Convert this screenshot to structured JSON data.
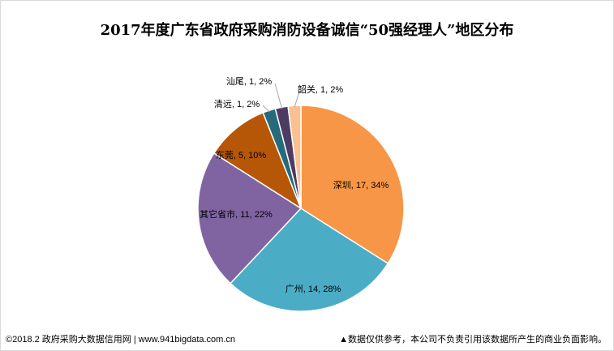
{
  "chart_data": {
    "type": "pie",
    "title": "2017年度广东省政府采购消防设备诚信“50强经理人”地区分布",
    "slices": [
      {
        "name": "深圳",
        "value": 17,
        "percent": "34%",
        "color": "#f79646"
      },
      {
        "name": "广州",
        "value": 14,
        "percent": "28%",
        "color": "#4bacc6"
      },
      {
        "name": "其它省市",
        "value": 11,
        "percent": "22%",
        "color": "#8064a2"
      },
      {
        "name": "东莞",
        "value": 5,
        "percent": "10%",
        "color": "#b65708"
      },
      {
        "name": "清远",
        "value": 1,
        "percent": "2%",
        "color": "#276a7c"
      },
      {
        "name": "汕尾",
        "value": 1,
        "percent": "2%",
        "color": "#4d3b62"
      },
      {
        "name": "韶关",
        "value": 1,
        "percent": "2%",
        "color": "#fac090"
      }
    ]
  },
  "footer": {
    "source": "©2018.2 政府采购大数据信用网 | www.941bigdata.com.cn",
    "disclaimer": "▲数据仅供参考，本公司不负责引用该数据所产生的商业负面影响。"
  }
}
